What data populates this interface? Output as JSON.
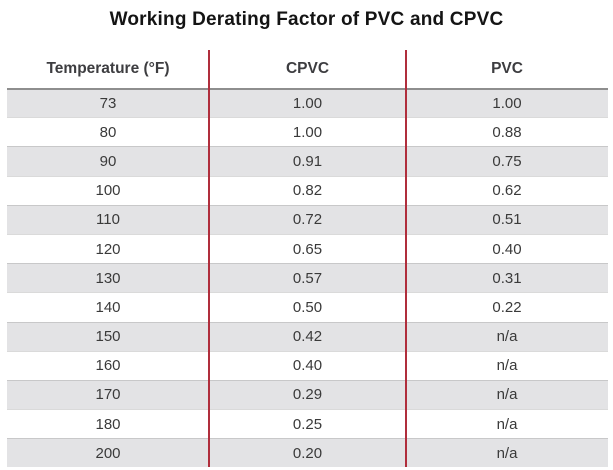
{
  "chart_data": {
    "type": "table",
    "title": "Working Derating Factor of PVC and CPVC",
    "columns": [
      "Temperature (°F)",
      "CPVC",
      "PVC"
    ],
    "rows": [
      [
        "73",
        "1.00",
        "1.00"
      ],
      [
        "80",
        "1.00",
        "0.88"
      ],
      [
        "90",
        "0.91",
        "0.75"
      ],
      [
        "100",
        "0.82",
        "0.62"
      ],
      [
        "110",
        "0.72",
        "0.51"
      ],
      [
        "120",
        "0.65",
        "0.40"
      ],
      [
        "130",
        "0.57",
        "0.31"
      ],
      [
        "140",
        "0.50",
        "0.22"
      ],
      [
        "150",
        "0.42",
        "n/a"
      ],
      [
        "160",
        "0.40",
        "n/a"
      ],
      [
        "170",
        "0.29",
        "n/a"
      ],
      [
        "180",
        "0.25",
        "n/a"
      ],
      [
        "200",
        "0.20",
        "n/a"
      ]
    ],
    "layout_hints": {
      "striped_rows": true,
      "first_row_shaded": true,
      "column_separators": "vertical red lines between all three columns",
      "header_rule": "gray horizontal rule between header and first row"
    }
  },
  "colors": {
    "separator_red": "#b02e3c",
    "stripe_gray": "#e3e3e5",
    "header_rule_gray": "#8e8e8e",
    "text_dark": "#3a3a3a",
    "title_black": "#141414"
  }
}
